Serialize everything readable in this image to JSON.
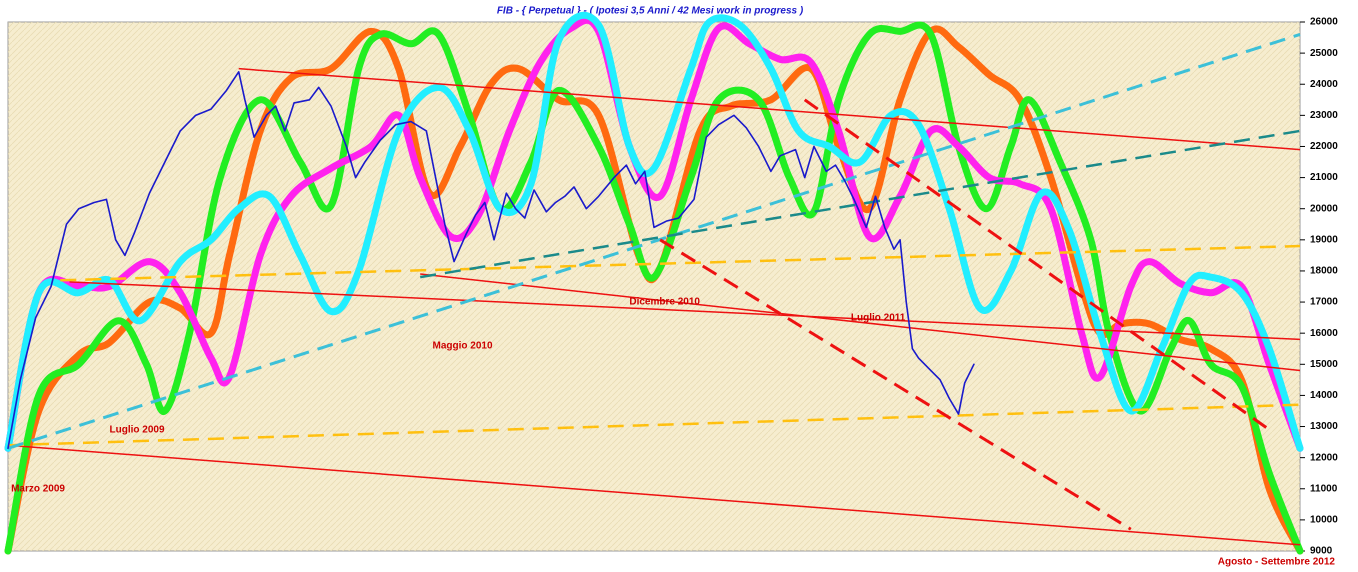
{
  "chart_data": {
    "type": "line",
    "title": "FIB  -  { Perpetual }  -  ( Ipotesi 3,5 Anni / 42 Mesi work in progress )",
    "xlim": [
      0,
      42
    ],
    "ylim": [
      9000,
      26000
    ],
    "yticks": [
      9000,
      10000,
      11000,
      12000,
      13000,
      14000,
      15000,
      16000,
      17000,
      18000,
      19000,
      20000,
      21000,
      22000,
      23000,
      24000,
      25000,
      26000
    ],
    "background": "#f6edcf",
    "series": [
      {
        "color": "#ff6a10",
        "width": 7,
        "smooth": true,
        "x": [
          0,
          1.0,
          2.3,
          3.3,
          4.6,
          5.6,
          6.6,
          7.2,
          8.2,
          9.2,
          10.5,
          11.8,
          12.7,
          13.7,
          14.7,
          15.7,
          16.6,
          17.9,
          19.2,
          20.5,
          21.2,
          22.5,
          23.5,
          24.8,
          26.1,
          27.0,
          28.0,
          29.0,
          30.0,
          30.9,
          31.9,
          32.9,
          33.9,
          34.9,
          35.5,
          36.2,
          37.1,
          38.1,
          39.1,
          40.1,
          41.0,
          42.0
        ],
        "values": [
          9000,
          13500,
          15300,
          15700,
          17000,
          16800,
          16000,
          18500,
          22500,
          24200,
          24500,
          25700,
          24500,
          20500,
          22000,
          24000,
          24500,
          23500,
          23000,
          18500,
          18100,
          22500,
          23300,
          23500,
          24500,
          22000,
          20000,
          23500,
          25700,
          25200,
          24300,
          23500,
          21000,
          17500,
          16000,
          16300,
          16300,
          15800,
          15500,
          14500,
          11000,
          9000
        ]
      },
      {
        "color": "#22ee22",
        "width": 7,
        "smooth": true,
        "x": [
          0,
          1.0,
          2.3,
          3.6,
          4.5,
          5.1,
          5.9,
          6.9,
          8.2,
          9.5,
          10.5,
          11.4,
          12.1,
          13.1,
          14.0,
          15.0,
          16.0,
          17.0,
          17.9,
          19.2,
          20.2,
          21.0,
          22.2,
          23.1,
          24.4,
          25.4,
          26.2,
          27.0,
          28.0,
          29.0,
          30.0,
          30.9,
          31.8,
          32.6,
          33.2,
          34.2,
          35.2,
          35.8,
          36.8,
          37.8,
          38.4,
          39.1,
          40.1,
          41.0,
          42.0
        ],
        "values": [
          9000,
          14000,
          15000,
          16400,
          15000,
          13500,
          16000,
          21000,
          23500,
          21500,
          20100,
          24500,
          25600,
          25300,
          25600,
          23000,
          20000,
          21500,
          23800,
          22000,
          19500,
          17800,
          21000,
          23500,
          23500,
          21000,
          19900,
          23500,
          25600,
          25700,
          25600,
          22000,
          20000,
          22000,
          23500,
          21500,
          19000,
          16000,
          13500,
          15500,
          16400,
          15000,
          14300,
          11500,
          9000
        ]
      },
      {
        "color": "#ff22ee",
        "width": 7,
        "smooth": true,
        "x": [
          0,
          1.0,
          2.3,
          3.3,
          4.6,
          5.6,
          6.6,
          7.2,
          8.2,
          9.2,
          10.5,
          11.8,
          12.7,
          13.4,
          14.4,
          15.3,
          16.3,
          17.3,
          18.3,
          19.2,
          20.2,
          21.2,
          22.2,
          23.1,
          24.1,
          25.1,
          26.1,
          27.0,
          28.0,
          29.0,
          30.0,
          30.9,
          31.9,
          32.9,
          33.9,
          34.9,
          35.5,
          36.5,
          37.1,
          38.1,
          39.1,
          40.1,
          41.0,
          42.0
        ],
        "values": [
          12300,
          17300,
          17500,
          17500,
          18300,
          17300,
          15200,
          14600,
          18500,
          20400,
          21300,
          22000,
          23000,
          21000,
          19100,
          19800,
          22500,
          24700,
          25800,
          25700,
          22000,
          20400,
          23500,
          25800,
          25300,
          24800,
          24700,
          22500,
          19100,
          20400,
          22500,
          22000,
          21000,
          20800,
          20000,
          16000,
          14600,
          17500,
          18300,
          17600,
          17300,
          17500,
          15000,
          12300
        ]
      },
      {
        "color": "#22eeff",
        "width": 7,
        "smooth": true,
        "x": [
          0,
          1.0,
          2.3,
          3.3,
          4.3,
          5.6,
          6.6,
          7.5,
          8.5,
          9.5,
          10.5,
          11.4,
          12.7,
          14.0,
          15.0,
          16.0,
          17.0,
          17.9,
          19.2,
          20.2,
          21.0,
          22.2,
          22.8,
          23.8,
          24.8,
          25.7,
          26.7,
          27.7,
          28.7,
          29.6,
          30.6,
          31.6,
          32.6,
          33.6,
          34.5,
          35.5,
          36.5,
          37.5,
          38.4,
          39.1,
          40.1,
          41.0,
          42.0
        ],
        "values": [
          12300,
          17300,
          17300,
          17700,
          16400,
          18300,
          19000,
          20000,
          20400,
          18500,
          16700,
          18000,
          22500,
          23900,
          22500,
          20000,
          20800,
          25400,
          25900,
          22000,
          21300,
          24500,
          26000,
          25900,
          24500,
          22500,
          22000,
          21500,
          23000,
          22700,
          20000,
          16800,
          18000,
          20500,
          19300,
          16000,
          13500,
          15500,
          17600,
          17800,
          17300,
          15500,
          12300
        ]
      },
      {
        "color": "#1a1acc",
        "width": 1.6,
        "smooth": false,
        "x": [
          0,
          0.4,
          0.9,
          1.4,
          1.9,
          2.3,
          2.8,
          3.2,
          3.5,
          3.8,
          4.1,
          4.6,
          5.1,
          5.6,
          6.1,
          6.6,
          7.1,
          7.5,
          7.7,
          8.0,
          8.4,
          8.7,
          9.0,
          9.3,
          9.8,
          10.1,
          10.5,
          11.0,
          11.3,
          11.6,
          12.1,
          12.6,
          13.1,
          13.6,
          13.9,
          14.2,
          14.5,
          14.9,
          15.2,
          15.5,
          15.8,
          16.2,
          16.5,
          16.8,
          17.1,
          17.5,
          17.8,
          18.1,
          18.4,
          18.8,
          19.2,
          19.7,
          20.1,
          20.4,
          20.7,
          21.0,
          21.4,
          21.8,
          22.3,
          22.7,
          23.1,
          23.6,
          24.0,
          24.4,
          24.8,
          25.1,
          25.6,
          25.9,
          26.2,
          26.6,
          26.9,
          27.2,
          27.5,
          27.9,
          28.2,
          28.5,
          28.8,
          29.0,
          29.2,
          29.4,
          29.6,
          30.0,
          30.3,
          30.6,
          30.9,
          31.1,
          31.4
        ],
        "values": [
          12300,
          14500,
          16500,
          17500,
          19500,
          20000,
          20200,
          20300,
          19000,
          18500,
          19200,
          20500,
          21500,
          22500,
          23000,
          23200,
          23800,
          24400,
          23500,
          22300,
          23000,
          23300,
          22500,
          23400,
          23500,
          23900,
          23300,
          22000,
          21000,
          21500,
          22200,
          22700,
          22800,
          22500,
          21000,
          19500,
          18300,
          19200,
          19800,
          20200,
          19000,
          20500,
          20000,
          19700,
          20600,
          19900,
          20200,
          20400,
          20700,
          20000,
          20400,
          21000,
          21400,
          20800,
          21200,
          19400,
          19600,
          19700,
          20300,
          22300,
          22700,
          23000,
          22600,
          22000,
          21200,
          21700,
          21900,
          21000,
          22000,
          21200,
          21400,
          20900,
          20300,
          19400,
          20400,
          19400,
          18700,
          19000,
          17000,
          15500,
          15200,
          14800,
          14500,
          13900,
          13400,
          14400,
          15000
        ]
      }
    ],
    "trend_lines": [
      {
        "color": "#ee1111",
        "width": 1.5,
        "dashed": false,
        "x": [
          7.5,
          42
        ],
        "values": [
          24500,
          21900
        ]
      },
      {
        "color": "#ee1111",
        "width": 1.5,
        "dashed": false,
        "x": [
          2.0,
          42
        ],
        "values": [
          17650,
          15800
        ]
      },
      {
        "color": "#ee1111",
        "width": 1.5,
        "dashed": false,
        "x": [
          13.4,
          42
        ],
        "values": [
          17900,
          14800
        ]
      },
      {
        "color": "#ee1111",
        "width": 1.5,
        "dashed": false,
        "x": [
          0,
          42
        ],
        "values": [
          12400,
          9200
        ]
      },
      {
        "color": "#ffc010",
        "width": 2.5,
        "dashed": true,
        "x": [
          0,
          42
        ],
        "values": [
          12400,
          13700
        ]
      },
      {
        "color": "#ffc010",
        "width": 2.5,
        "dashed": true,
        "x": [
          1.7,
          42
        ],
        "values": [
          17700,
          18800
        ]
      },
      {
        "color": "#3cc0d8",
        "width": 3,
        "dashed": true,
        "x": [
          0,
          42
        ],
        "values": [
          12300,
          25600
        ]
      },
      {
        "color": "#1a8a8a",
        "width": 2.5,
        "dashed": true,
        "x": [
          13.4,
          42
        ],
        "values": [
          17800,
          22500
        ]
      },
      {
        "color": "#ee1111",
        "width": 3,
        "dashed": true,
        "x": [
          21.2,
          36.5
        ],
        "values": [
          19000,
          9700
        ]
      },
      {
        "color": "#ee1111",
        "width": 3,
        "dashed": true,
        "x": [
          25.9,
          41.0
        ],
        "values": [
          23500,
          12900
        ]
      }
    ],
    "annotations": [
      {
        "text": "Marzo 2009",
        "x": 0.1,
        "y": 11000
      },
      {
        "text": "Luglio 2009",
        "x": 3.3,
        "y": 12900
      },
      {
        "text": "Maggio 2010",
        "x": 13.8,
        "y": 15600
      },
      {
        "text": "Dicembre 2010",
        "x": 20.2,
        "y": 17000
      },
      {
        "text": "Luglio 2011",
        "x": 27.4,
        "y": 16500
      }
    ],
    "footer_note": "Agosto - Settembre 2012"
  }
}
